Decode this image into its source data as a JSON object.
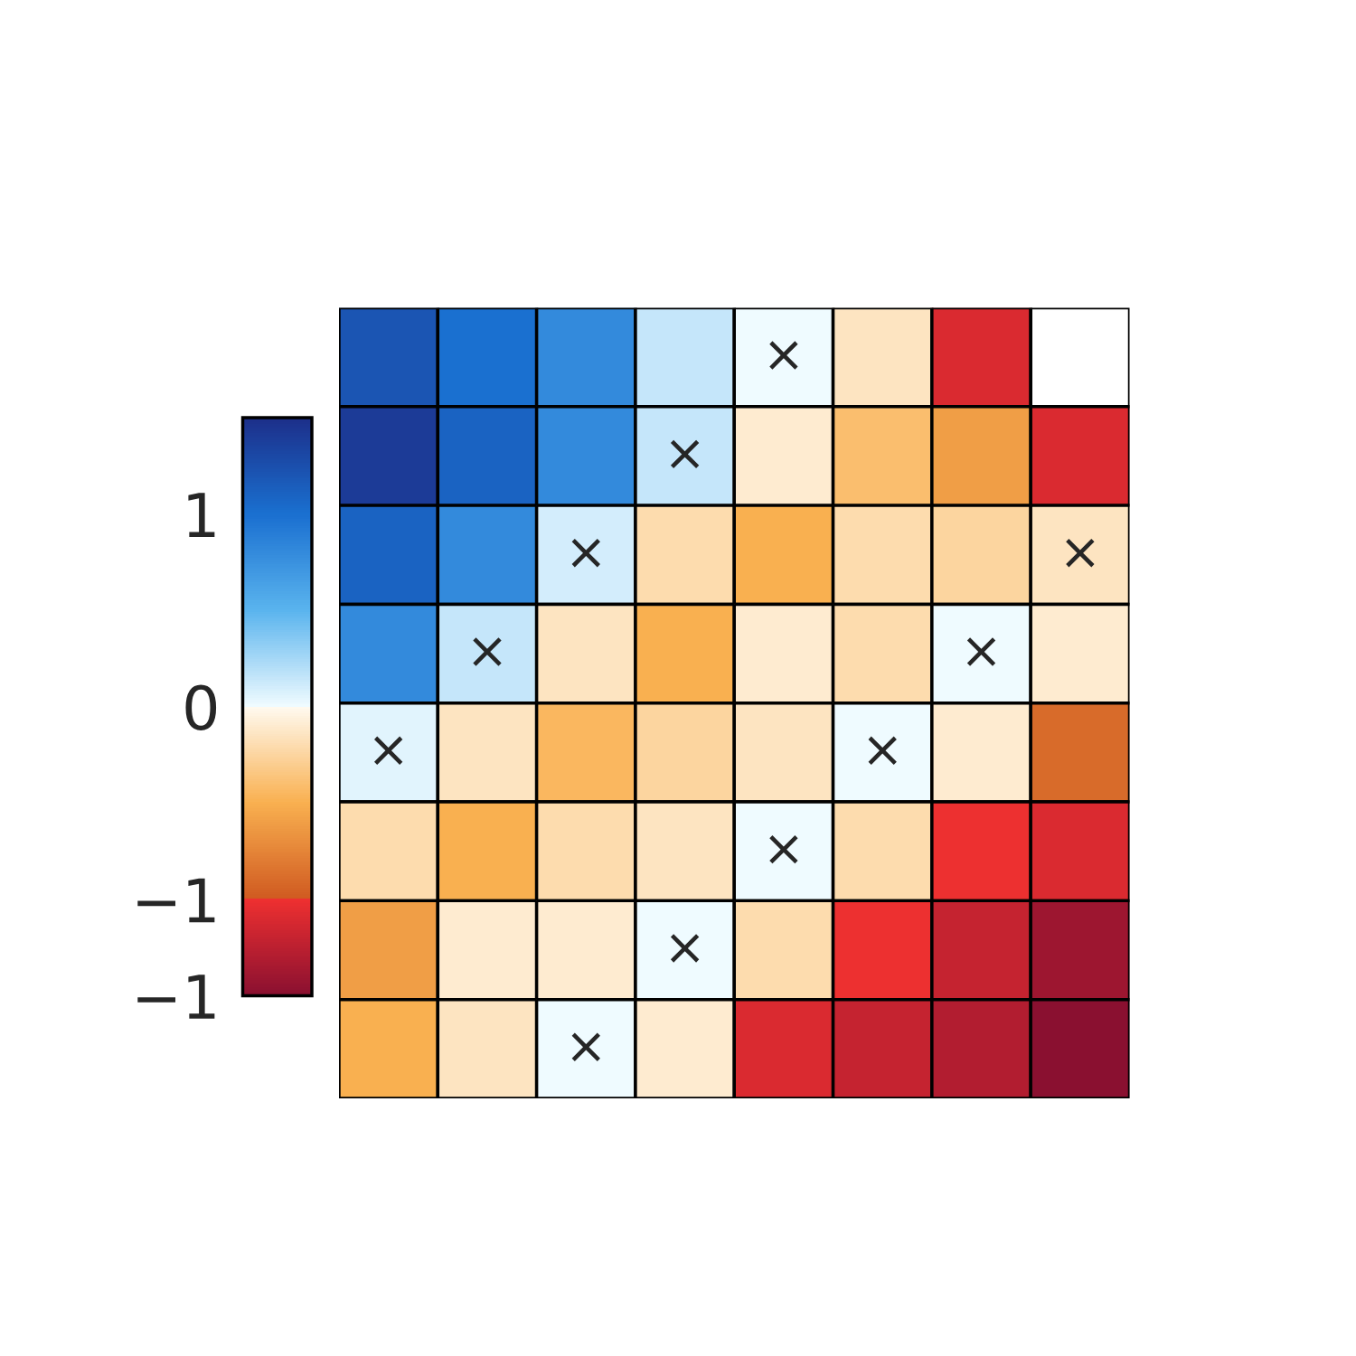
{
  "chart_data": {
    "type": "heatmap",
    "categories": [
      null,
      null,
      null,
      null,
      null,
      null,
      null,
      null
    ],
    "y_categories": [
      null,
      null,
      null,
      null,
      null,
      null,
      null,
      null
    ],
    "cells": [
      [
        1.2,
        1.0,
        0.8,
        0.15,
        0,
        -0.15,
        -1.1,
        null
      ],
      [
        1.4,
        1.1,
        0.8,
        0.15,
        -0.1,
        -0.4,
        -0.6,
        -1.1
      ],
      [
        1.1,
        0.8,
        0.1,
        -0.2,
        -0.5,
        -0.2,
        -0.25,
        -0.15
      ],
      [
        0.8,
        0.15,
        -0.15,
        -0.5,
        -0.1,
        -0.2,
        0,
        -0.1
      ],
      [
        0.05,
        -0.15,
        -0.45,
        -0.25,
        -0.15,
        0,
        -0.1,
        -0.9
      ],
      [
        -0.2,
        -0.5,
        -0.2,
        -0.15,
        0,
        -0.2,
        -1.0,
        -1.1
      ],
      [
        -0.6,
        -0.1,
        -0.1,
        0,
        -0.2,
        -1.0,
        -1.2,
        -1.4
      ],
      [
        -0.5,
        -0.15,
        0,
        -0.1,
        -1.1,
        -1.2,
        -1.3,
        -1.5
      ]
    ],
    "cell_labels": [
      [
        null,
        null,
        null,
        null,
        "×",
        null,
        null,
        null
      ],
      [
        null,
        null,
        null,
        "×",
        null,
        null,
        null,
        null
      ],
      [
        null,
        null,
        "×",
        null,
        null,
        null,
        null,
        "×"
      ],
      [
        null,
        "×",
        null,
        null,
        null,
        null,
        "×",
        null
      ],
      [
        "×",
        null,
        null,
        null,
        null,
        "×",
        null,
        null
      ],
      [
        null,
        null,
        null,
        null,
        "×",
        null,
        null,
        null
      ],
      [
        null,
        null,
        null,
        "×",
        null,
        null,
        null,
        null
      ],
      [
        null,
        null,
        "×",
        null,
        null,
        null,
        null,
        null
      ]
    ],
    "clim": [
      -1.5,
      1.5
    ],
    "cticks": [
      1,
      0,
      {
        "value": -1,
        "label": "−1"
      },
      {
        "value": -1.5,
        "label": "−1"
      }
    ]
  }
}
